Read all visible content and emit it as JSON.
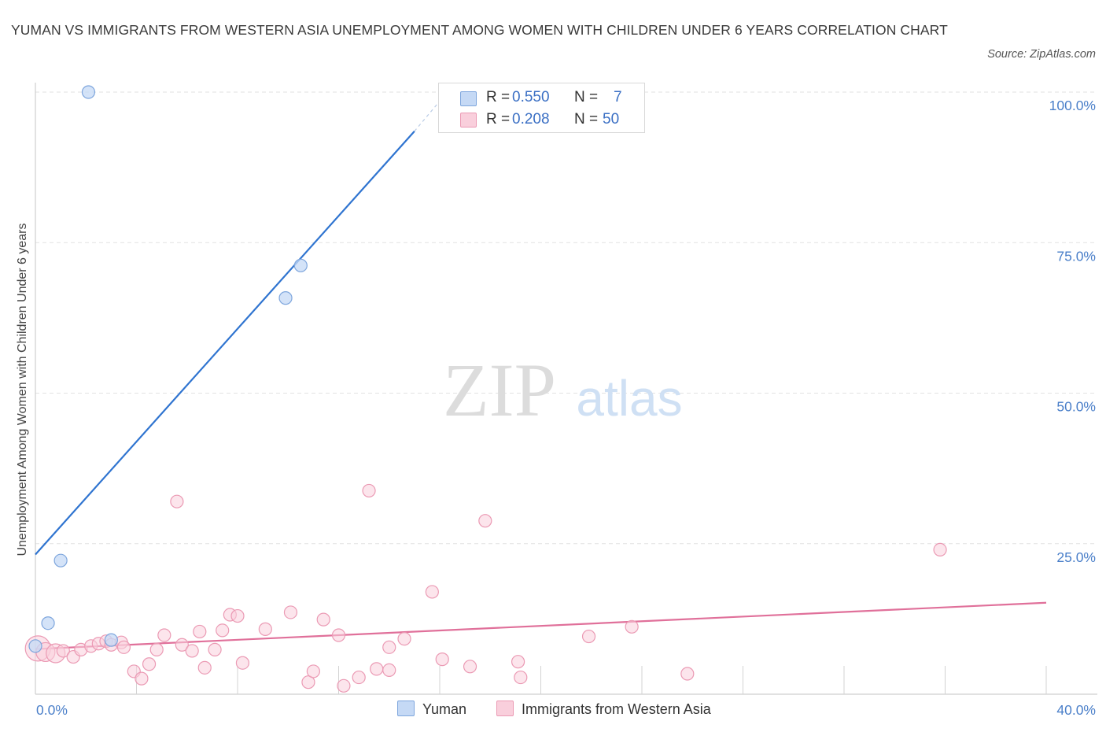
{
  "title": "YUMAN VS IMMIGRANTS FROM WESTERN ASIA UNEMPLOYMENT AMONG WOMEN WITH CHILDREN UNDER 6 YEARS CORRELATION CHART",
  "source": "Source: ZipAtlas.com",
  "watermark": {
    "zip": "ZIP",
    "atlas": "atlas"
  },
  "colors": {
    "yuman_fill": "#c5d9f5",
    "yuman_stroke": "#7ea6dd",
    "yuman_line": "#2f74d0",
    "imm_fill": "#f9cfdc",
    "imm_stroke": "#eb9ab4",
    "imm_line": "#e0709a",
    "axis_text": "#4a7fc9",
    "grid": "#e2e2e2"
  },
  "legend": {
    "rows": [
      {
        "r_label": "R =",
        "r_value": "0.550",
        "n_label": "N =",
        "n_value": "7"
      },
      {
        "r_label": "R =",
        "r_value": "0.208",
        "n_label": "N =",
        "n_value": "50"
      }
    ]
  },
  "bottom_legend": {
    "yuman": "Yuman",
    "imm": "Immigrants from Western Asia"
  },
  "chart_data": {
    "type": "scatter",
    "title": "YUMAN VS IMMIGRANTS FROM WESTERN ASIA UNEMPLOYMENT AMONG WOMEN WITH CHILDREN UNDER 6 YEARS CORRELATION CHART",
    "xlabel": "",
    "ylabel": "Unemployment Among Women with Children Under 6 years",
    "xlim": [
      0,
      40
    ],
    "ylim": [
      0,
      100
    ],
    "x_tick_labels": [
      "0.0%",
      "40.0%"
    ],
    "y_tick_labels": [
      "100.0%",
      "75.0%",
      "50.0%",
      "25.0%"
    ],
    "y_ticks": [
      100,
      75,
      50,
      25
    ],
    "x_minor_ticks": [
      4,
      8,
      12,
      16,
      20,
      24,
      28,
      32,
      36,
      40
    ],
    "grid": true,
    "series": [
      {
        "name": "Yuman",
        "r": 0.55,
        "n": 7,
        "points": [
          [
            0.0,
            8.0
          ],
          [
            0.5,
            11.8
          ],
          [
            1.0,
            22.2
          ],
          [
            2.1,
            100.0
          ],
          [
            3.0,
            9.0
          ],
          [
            9.9,
            65.8
          ],
          [
            10.5,
            71.2
          ]
        ],
        "trend": {
          "x0": 0.0,
          "y0": 23.2,
          "x1": 15.0,
          "y1": 93.5,
          "dashed_to_x": 16.2,
          "dashed_to_y": 99.5
        }
      },
      {
        "name": "Immigrants from Western Asia",
        "r": 0.208,
        "n": 50,
        "points": [
          [
            0.1,
            7.6
          ],
          [
            0.4,
            7.0
          ],
          [
            0.8,
            6.8
          ],
          [
            1.1,
            7.2
          ],
          [
            1.5,
            6.2
          ],
          [
            1.8,
            7.4
          ],
          [
            2.2,
            8.0
          ],
          [
            2.5,
            8.4
          ],
          [
            2.8,
            8.8
          ],
          [
            3.0,
            8.2
          ],
          [
            3.4,
            8.6
          ],
          [
            3.5,
            7.8
          ],
          [
            3.9,
            3.8
          ],
          [
            4.2,
            2.6
          ],
          [
            4.5,
            5.0
          ],
          [
            4.8,
            7.4
          ],
          [
            5.1,
            9.8
          ],
          [
            5.6,
            32.0
          ],
          [
            5.8,
            8.2
          ],
          [
            6.2,
            7.2
          ],
          [
            6.5,
            10.4
          ],
          [
            6.7,
            4.4
          ],
          [
            7.1,
            7.4
          ],
          [
            7.4,
            10.6
          ],
          [
            7.7,
            13.2
          ],
          [
            8.0,
            13.0
          ],
          [
            8.2,
            5.2
          ],
          [
            9.1,
            10.8
          ],
          [
            10.1,
            13.6
          ],
          [
            10.8,
            2.0
          ],
          [
            11.0,
            3.8
          ],
          [
            11.4,
            12.4
          ],
          [
            12.0,
            9.8
          ],
          [
            12.2,
            1.4
          ],
          [
            12.8,
            2.8
          ],
          [
            13.2,
            33.8
          ],
          [
            13.5,
            4.2
          ],
          [
            14.0,
            4.0
          ],
          [
            14.0,
            7.8
          ],
          [
            14.6,
            9.2
          ],
          [
            15.7,
            17.0
          ],
          [
            16.1,
            5.8
          ],
          [
            17.2,
            4.6
          ],
          [
            17.8,
            28.8
          ],
          [
            19.1,
            5.4
          ],
          [
            19.2,
            2.8
          ],
          [
            21.9,
            9.6
          ],
          [
            23.6,
            11.2
          ],
          [
            25.8,
            3.4
          ],
          [
            35.8,
            24.0
          ]
        ],
        "trend": {
          "x0": 0.0,
          "y0": 7.5,
          "x1": 40.0,
          "y1": 15.2
        }
      }
    ]
  }
}
